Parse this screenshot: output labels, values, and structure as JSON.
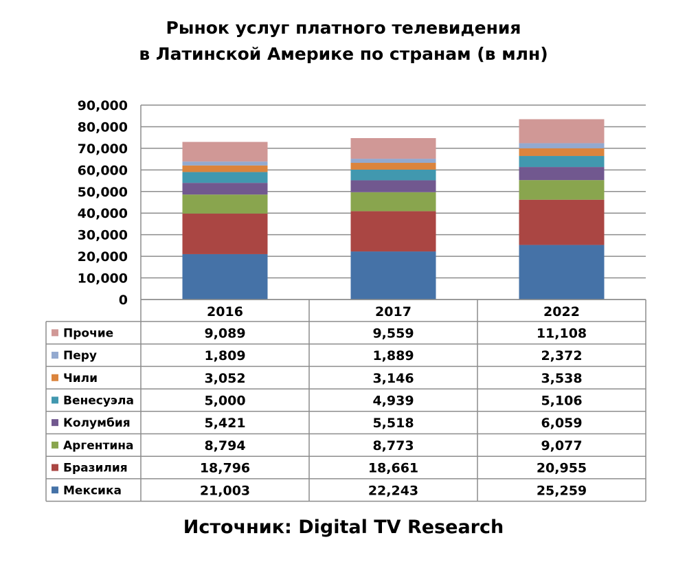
{
  "title": {
    "line1": "Рынок услуг платного телевидения",
    "line2": "в Латинской Америке по странам (в млн)"
  },
  "source": "Источник: Digital TV Research",
  "chart_data": {
    "type": "bar",
    "stacked": true,
    "categories": [
      "2016",
      "2017",
      "2022"
    ],
    "ylim": [
      0,
      90000
    ],
    "yticks": [
      0,
      10000,
      20000,
      30000,
      40000,
      50000,
      60000,
      70000,
      80000,
      90000
    ],
    "ytick_labels": [
      "0",
      "10,000",
      "20,000",
      "30,000",
      "40,000",
      "50,000",
      "60,000",
      "70,000",
      "80,000",
      "90,000"
    ],
    "grid": true,
    "legend_placement": "data-table",
    "series": [
      {
        "name": "Мексика",
        "color": "#4572a7",
        "values": [
          21003,
          22243,
          25259
        ],
        "labels": [
          "21,003",
          "22,243",
          "25,259"
        ]
      },
      {
        "name": "Бразилия",
        "color": "#aa4643",
        "values": [
          18796,
          18661,
          20955
        ],
        "labels": [
          "18,796",
          "18,661",
          "20,955"
        ]
      },
      {
        "name": "Аргентина",
        "color": "#89a54e",
        "values": [
          8794,
          8773,
          9077
        ],
        "labels": [
          "8,794",
          "8,773",
          "9,077"
        ]
      },
      {
        "name": "Колумбия",
        "color": "#71588f",
        "values": [
          5421,
          5518,
          6059
        ],
        "labels": [
          "5,421",
          "5,518",
          "6,059"
        ]
      },
      {
        "name": "Венесуэла",
        "color": "#4198af",
        "values": [
          5000,
          4939,
          5106
        ],
        "labels": [
          "5,000",
          "4,939",
          "5,106"
        ]
      },
      {
        "name": "Чили",
        "color": "#db843d",
        "values": [
          3052,
          3146,
          3538
        ],
        "labels": [
          "3,052",
          "3,146",
          "3,538"
        ]
      },
      {
        "name": "Перу",
        "color": "#93a9cf",
        "values": [
          1809,
          1889,
          2372
        ],
        "labels": [
          "1,809",
          "1,889",
          "2,372"
        ]
      },
      {
        "name": "Прочие",
        "color": "#d09896",
        "values": [
          9089,
          9559,
          11108
        ],
        "labels": [
          "9,089",
          "9,559",
          "11,108"
        ]
      }
    ]
  }
}
